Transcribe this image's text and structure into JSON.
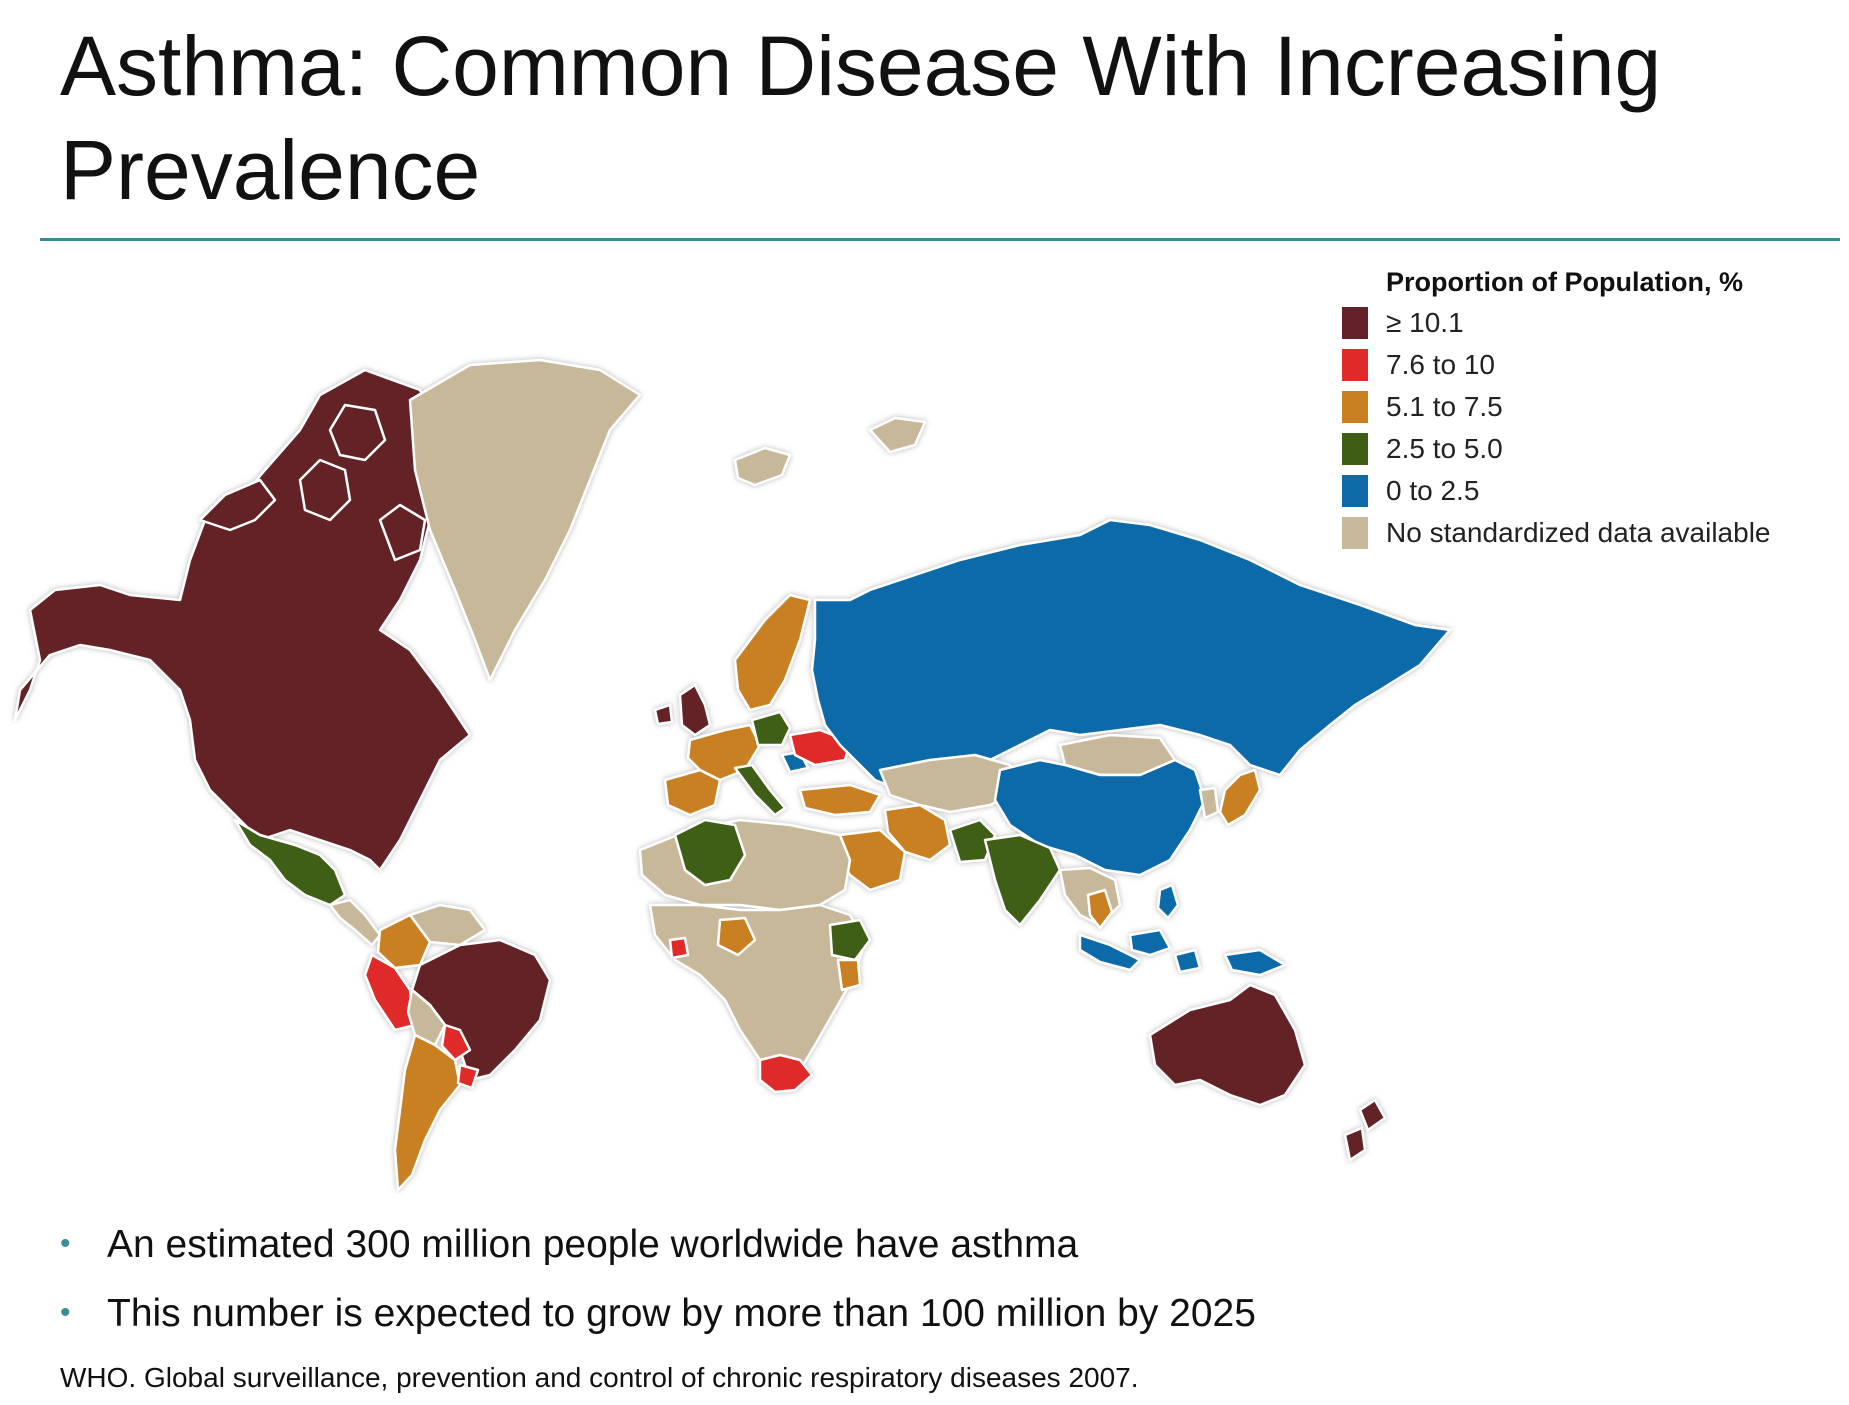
{
  "slide": {
    "title": "Asthma: Common Disease With Increasing Prevalence"
  },
  "legend": {
    "title": "Proportion of Population, %",
    "items": [
      {
        "label": "≥ 10.1",
        "color": "#632227"
      },
      {
        "label": "7.6 to 10",
        "color": "#e02a2a"
      },
      {
        "label": "5.1 to 7.5",
        "color": "#c98020"
      },
      {
        "label": "2.5 to 5.0",
        "color": "#3f5e14"
      },
      {
        "label": "0 to 2.5",
        "color": "#0f6ba8"
      },
      {
        "label": "No standardized data available",
        "color": "#c8b89a"
      }
    ]
  },
  "bullets": [
    "An estimated 300 million people worldwide have asthma",
    "This number is expected to grow by more than 100 million by 2025"
  ],
  "citation": "WHO. Global surveillance, prevention and control of chronic respiratory diseases 2007.",
  "map_regions": {
    "north-america": "≥ 10.1",
    "greenland": "No standardized data available",
    "mexico": "2.5 to 5.0",
    "central-america": "No standardized data available",
    "colombia": "5.1 to 7.5",
    "venezuela": "No standardized data available",
    "peru": "7.6 to 10",
    "brazil": "≥ 10.1",
    "bolivia": "No standardized data available",
    "paraguay": "7.6 to 10",
    "uruguay": "7.6 to 10",
    "argentina": "5.1 to 7.5",
    "united-kingdom": "≥ 10.1",
    "scandinavia": "5.1 to 7.5",
    "western-europe": "5.1 to 7.5",
    "poland": "2.5 to 5.0",
    "ukraine": "7.6 to 10",
    "romania": "0 to 2.5",
    "italy": "2.5 to 5.0",
    "iberia": "5.1 to 7.5",
    "russia": "0 to 2.5",
    "turkey": "5.1 to 7.5",
    "iran": "5.1 to 7.5",
    "saudi-arabia": "5.1 to 7.5",
    "algeria": "2.5 to 5.0",
    "north-africa": "No standardized data available",
    "nigeria": "5.1 to 7.5",
    "ivory-coast": "7.6 to 10",
    "ethiopia": "2.5 to 5.0",
    "kenya": "5.1 to 7.5",
    "sub-saharan-africa": "No standardized data available",
    "south-africa": "7.6 to 10",
    "central-asia": "No standardized data available",
    "china": "0 to 2.5",
    "mongolia": "No standardized data available",
    "pakistan": "2.5 to 5.0",
    "india": "2.5 to 5.0",
    "japan": "5.1 to 7.5",
    "korea": "No standardized data available",
    "thailand": "5.1 to 7.5",
    "southeast-asia": "No standardized data available",
    "indonesia": "0 to 2.5",
    "philippines": "0 to 2.5",
    "papua-new-guinea": "0 to 2.5",
    "australia": "≥ 10.1",
    "new-zealand": "≥ 10.1",
    "iceland": "No standardized data available",
    "svalbard": "No standardized data available"
  }
}
